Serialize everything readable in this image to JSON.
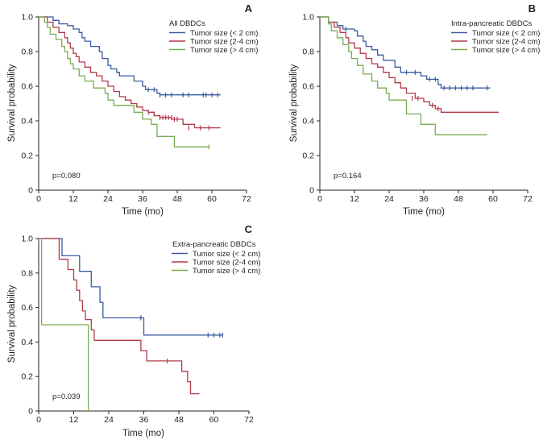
{
  "chart_data": [
    {
      "type": "line",
      "subtype": "kaplan-meier",
      "panel": "A",
      "legend_title": "All DBDCs",
      "xlabel": "Time (mo)",
      "ylabel": "Survival probability",
      "xlim": [
        0,
        72
      ],
      "ylim": [
        0,
        1.0
      ],
      "xticks": [
        "0",
        "12",
        "24",
        "36",
        "48",
        "60",
        "72"
      ],
      "yticks": [
        "0",
        "0.2",
        "0.4",
        "0.6",
        "0.8",
        "1.0"
      ],
      "annotation": "p=0.080",
      "series": [
        {
          "name": "Tumor size (< 2 cm)",
          "color": "#3a5ba0",
          "steps": [
            [
              0,
              1.0
            ],
            [
              5,
              0.98
            ],
            [
              7,
              0.96
            ],
            [
              10,
              0.95
            ],
            [
              12,
              0.93
            ],
            [
              14,
              0.91
            ],
            [
              15,
              0.88
            ],
            [
              16,
              0.86
            ],
            [
              18,
              0.83
            ],
            [
              21,
              0.8
            ],
            [
              22,
              0.76
            ],
            [
              24,
              0.72
            ],
            [
              25,
              0.7
            ],
            [
              27,
              0.68
            ],
            [
              28,
              0.66
            ],
            [
              33,
              0.63
            ],
            [
              36,
              0.6
            ],
            [
              37,
              0.58
            ],
            [
              41,
              0.56
            ],
            [
              42,
              0.55
            ],
            [
              63,
              0.55
            ]
          ],
          "censor": [
            [
              38,
              0.58
            ],
            [
              40,
              0.58
            ],
            [
              42,
              0.55
            ],
            [
              44,
              0.55
            ],
            [
              46,
              0.55
            ],
            [
              50,
              0.55
            ],
            [
              52,
              0.55
            ],
            [
              57,
              0.55
            ],
            [
              58,
              0.55
            ],
            [
              60,
              0.55
            ],
            [
              62,
              0.55
            ]
          ]
        },
        {
          "name": "Tumor size (2-4 cm)",
          "color": "#b23a48",
          "steps": [
            [
              0,
              1.0
            ],
            [
              3,
              0.97
            ],
            [
              5,
              0.94
            ],
            [
              7,
              0.91
            ],
            [
              9,
              0.88
            ],
            [
              10,
              0.85
            ],
            [
              11,
              0.82
            ],
            [
              12,
              0.79
            ],
            [
              13,
              0.77
            ],
            [
              14,
              0.74
            ],
            [
              16,
              0.71
            ],
            [
              18,
              0.68
            ],
            [
              20,
              0.66
            ],
            [
              22,
              0.63
            ],
            [
              24,
              0.6
            ],
            [
              26,
              0.57
            ],
            [
              28,
              0.54
            ],
            [
              30,
              0.52
            ],
            [
              32,
              0.5
            ],
            [
              34,
              0.48
            ],
            [
              36,
              0.46
            ],
            [
              38,
              0.45
            ],
            [
              40,
              0.43
            ],
            [
              42,
              0.42
            ],
            [
              46,
              0.41
            ],
            [
              50,
              0.38
            ],
            [
              54,
              0.36
            ],
            [
              63,
              0.36
            ]
          ],
          "censor": [
            [
              38,
              0.45
            ],
            [
              40,
              0.44
            ],
            [
              42,
              0.42
            ],
            [
              43,
              0.42
            ],
            [
              44,
              0.42
            ],
            [
              45,
              0.42
            ],
            [
              46,
              0.42
            ],
            [
              47,
              0.41
            ],
            [
              48,
              0.41
            ],
            [
              52,
              0.36
            ],
            [
              56,
              0.36
            ],
            [
              59,
              0.36
            ]
          ]
        },
        {
          "name": "Tumor size (> 4 cm)",
          "color": "#77ad52",
          "steps": [
            [
              0,
              1.0
            ],
            [
              2,
              0.97
            ],
            [
              3,
              0.94
            ],
            [
              4,
              0.9
            ],
            [
              6,
              0.87
            ],
            [
              8,
              0.83
            ],
            [
              9,
              0.8
            ],
            [
              10,
              0.76
            ],
            [
              11,
              0.73
            ],
            [
              12,
              0.7
            ],
            [
              14,
              0.66
            ],
            [
              16,
              0.63
            ],
            [
              19,
              0.59
            ],
            [
              23,
              0.56
            ],
            [
              24,
              0.52
            ],
            [
              26,
              0.49
            ],
            [
              33,
              0.45
            ],
            [
              36,
              0.41
            ],
            [
              39,
              0.38
            ],
            [
              41,
              0.31
            ],
            [
              47,
              0.25
            ],
            [
              59,
              0.25
            ]
          ],
          "censor": [
            [
              59,
              0.25
            ]
          ]
        }
      ]
    },
    {
      "type": "line",
      "subtype": "kaplan-meier",
      "panel": "B",
      "legend_title": "Intra-pancreatic DBDCs",
      "xlabel": "Time (mo)",
      "ylabel": "Survival probability",
      "xlim": [
        0,
        72
      ],
      "ylim": [
        0,
        1.0
      ],
      "xticks": [
        "0",
        "12",
        "24",
        "36",
        "48",
        "60",
        "72"
      ],
      "yticks": [
        "0",
        "0.2",
        "0.4",
        "0.6",
        "0.8",
        "1.0"
      ],
      "annotation": "p=0.164",
      "series": [
        {
          "name": "Tumor size (< 2 cm)",
          "color": "#3a5ba0",
          "steps": [
            [
              0,
              1.0
            ],
            [
              3,
              0.97
            ],
            [
              6,
              0.95
            ],
            [
              8,
              0.93
            ],
            [
              12,
              0.92
            ],
            [
              13,
              0.89
            ],
            [
              15,
              0.86
            ],
            [
              16,
              0.83
            ],
            [
              18,
              0.81
            ],
            [
              20,
              0.78
            ],
            [
              22,
              0.75
            ],
            [
              26,
              0.71
            ],
            [
              28,
              0.68
            ],
            [
              35,
              0.66
            ],
            [
              37,
              0.64
            ],
            [
              41,
              0.61
            ],
            [
              42,
              0.59
            ],
            [
              59,
              0.59
            ]
          ],
          "censor": [
            [
              9,
              0.93
            ],
            [
              30,
              0.68
            ],
            [
              33,
              0.68
            ],
            [
              38,
              0.64
            ],
            [
              40,
              0.64
            ],
            [
              43,
              0.59
            ],
            [
              45,
              0.59
            ],
            [
              47,
              0.59
            ],
            [
              49,
              0.59
            ],
            [
              51,
              0.59
            ],
            [
              53,
              0.59
            ],
            [
              58,
              0.59
            ]
          ]
        },
        {
          "name": "Tumor size (2-4 cm)",
          "color": "#b23a48",
          "steps": [
            [
              0,
              1.0
            ],
            [
              3,
              0.97
            ],
            [
              5,
              0.94
            ],
            [
              7,
              0.91
            ],
            [
              9,
              0.88
            ],
            [
              10,
              0.85
            ],
            [
              12,
              0.82
            ],
            [
              14,
              0.79
            ],
            [
              16,
              0.76
            ],
            [
              18,
              0.73
            ],
            [
              20,
              0.71
            ],
            [
              22,
              0.68
            ],
            [
              24,
              0.65
            ],
            [
              26,
              0.62
            ],
            [
              28,
              0.59
            ],
            [
              30,
              0.56
            ],
            [
              33,
              0.53
            ],
            [
              36,
              0.51
            ],
            [
              38,
              0.49
            ],
            [
              40,
              0.47
            ],
            [
              42,
              0.45
            ],
            [
              62,
              0.45
            ]
          ],
          "censor": [
            [
              32,
              0.53
            ],
            [
              34,
              0.53
            ],
            [
              39,
              0.49
            ],
            [
              41,
              0.47
            ]
          ]
        },
        {
          "name": "Tumor size (> 4 cm)",
          "color": "#77ad52",
          "steps": [
            [
              0,
              1.0
            ],
            [
              3,
              0.96
            ],
            [
              4,
              0.92
            ],
            [
              6,
              0.88
            ],
            [
              8,
              0.84
            ],
            [
              10,
              0.8
            ],
            [
              11,
              0.76
            ],
            [
              13,
              0.72
            ],
            [
              15,
              0.67
            ],
            [
              18,
              0.63
            ],
            [
              20,
              0.59
            ],
            [
              23,
              0.56
            ],
            [
              24,
              0.52
            ],
            [
              30,
              0.44
            ],
            [
              35,
              0.38
            ],
            [
              40,
              0.32
            ],
            [
              58,
              0.32
            ]
          ],
          "censor": []
        }
      ]
    },
    {
      "type": "line",
      "subtype": "kaplan-meier",
      "panel": "C",
      "legend_title": "Extra-pancreatic DBDCs",
      "xlabel": "Time (mo)",
      "ylabel": "Survival probability",
      "xlim": [
        0,
        72
      ],
      "ylim": [
        0,
        1.0
      ],
      "xticks": [
        "0",
        "12",
        "24",
        "36",
        "48",
        "60",
        "72"
      ],
      "yticks": [
        "0",
        "0.2",
        "0.4",
        "0.6",
        "0.8",
        "1.0"
      ],
      "annotation": "p=0.039",
      "series": [
        {
          "name": "Tumor size (< 2 cm)",
          "color": "#3a5ba0",
          "steps": [
            [
              0,
              1.0
            ],
            [
              8,
              0.9
            ],
            [
              14,
              0.81
            ],
            [
              18,
              0.72
            ],
            [
              21,
              0.63
            ],
            [
              22,
              0.54
            ],
            [
              36,
              0.44
            ],
            [
              63,
              0.44
            ]
          ],
          "censor": [
            [
              35,
              0.54
            ],
            [
              58,
              0.44
            ],
            [
              60,
              0.44
            ],
            [
              62,
              0.44
            ],
            [
              63,
              0.44
            ]
          ]
        },
        {
          "name": "Tumor size (2-4 cm)",
          "color": "#b23a48",
          "steps": [
            [
              0,
              1.0
            ],
            [
              7,
              0.88
            ],
            [
              10,
              0.82
            ],
            [
              12,
              0.76
            ],
            [
              13,
              0.7
            ],
            [
              14,
              0.64
            ],
            [
              15,
              0.58
            ],
            [
              16,
              0.53
            ],
            [
              18,
              0.47
            ],
            [
              19,
              0.41
            ],
            [
              35,
              0.35
            ],
            [
              37,
              0.29
            ],
            [
              49,
              0.23
            ],
            [
              51,
              0.17
            ],
            [
              52,
              0.1
            ],
            [
              55,
              0.1
            ]
          ],
          "censor": [
            [
              44,
              0.29
            ]
          ]
        },
        {
          "name": "Tumor size (> 4 cm)",
          "color": "#77ad52",
          "steps": [
            [
              0,
              1.0
            ],
            [
              1,
              0.5
            ],
            [
              17,
              0.0
            ]
          ],
          "censor": []
        }
      ]
    }
  ]
}
